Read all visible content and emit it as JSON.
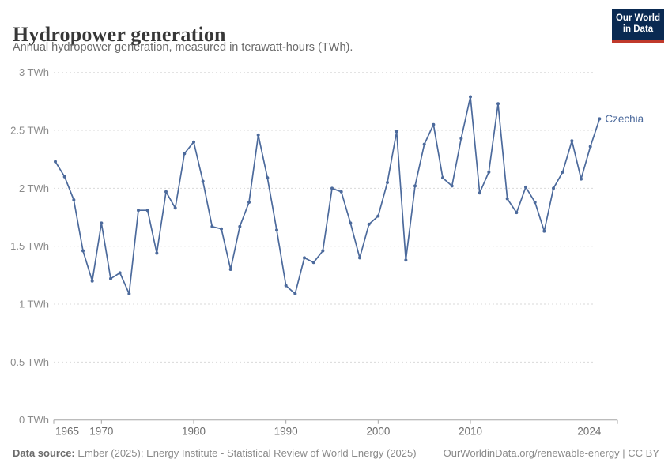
{
  "header": {
    "title": "Hydropower generation",
    "subtitle": "Annual hydropower generation, measured in terawatt-hours (TWh)."
  },
  "logo": {
    "line1": "Our World",
    "line2": "in Data"
  },
  "chart_data": {
    "type": "line",
    "title": "Hydropower generation",
    "unit": "TWh",
    "ylim": [
      0,
      3
    ],
    "yticks": [
      0,
      0.5,
      1,
      1.5,
      2,
      2.5,
      3
    ],
    "ytick_label_format": "{v} TWh",
    "xticks": [
      1965,
      1970,
      1980,
      1990,
      2000,
      2010,
      2024
    ],
    "grid": "horizontal-dashed",
    "legend_position": "line-end-label",
    "series": [
      {
        "name": "Czechia",
        "color": "#4C6A9C",
        "x": [
          1965,
          1966,
          1967,
          1968,
          1969,
          1970,
          1971,
          1972,
          1973,
          1974,
          1975,
          1976,
          1977,
          1978,
          1979,
          1980,
          1981,
          1982,
          1983,
          1984,
          1985,
          1986,
          1987,
          1988,
          1989,
          1990,
          1991,
          1992,
          1993,
          1994,
          1995,
          1996,
          1997,
          1998,
          1999,
          2000,
          2001,
          2002,
          2003,
          2004,
          2005,
          2006,
          2007,
          2008,
          2009,
          2010,
          2011,
          2012,
          2013,
          2014,
          2015,
          2016,
          2017,
          2018,
          2019,
          2020,
          2021,
          2022,
          2023,
          2024
        ],
        "values": [
          2.23,
          2.1,
          1.9,
          1.46,
          1.2,
          1.7,
          1.22,
          1.27,
          1.09,
          1.81,
          1.81,
          1.44,
          1.97,
          1.83,
          2.3,
          2.4,
          2.06,
          1.67,
          1.65,
          1.3,
          1.67,
          1.88,
          2.46,
          2.09,
          1.64,
          1.16,
          1.09,
          1.4,
          1.36,
          1.46,
          2.0,
          1.97,
          1.7,
          1.4,
          1.69,
          1.76,
          2.05,
          2.49,
          1.38,
          2.02,
          2.38,
          2.55,
          2.09,
          2.02,
          2.43,
          2.79,
          1.96,
          2.14,
          2.73,
          1.91,
          1.79,
          2.01,
          1.88,
          1.63,
          2.0,
          2.14,
          2.41,
          2.08,
          2.36,
          2.6
        ]
      }
    ]
  },
  "footer": {
    "source_label": "Data source:",
    "source_text": " Ember (2025); Energy Institute - Statistical Review of World Energy (2025)",
    "link_text": "OurWorldinData.org/renewable-energy | CC BY"
  },
  "colors": {
    "series": "#4C6A9C",
    "grid": "#dadada",
    "axis": "#a5a5a5",
    "ylabel": "#8b8b8b",
    "xlabel": "#6e6e6e",
    "logo_bg": "#0A2A52",
    "logo_accent": "#C0392B"
  }
}
